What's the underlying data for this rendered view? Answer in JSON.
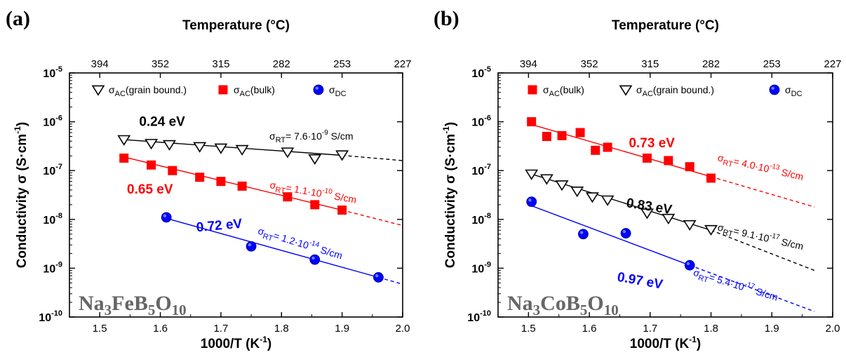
{
  "chart_data": [
    {
      "type": "scatter",
      "panel_label": "(a)",
      "xlabel": "1000/T (K",
      "xlabel_sup": "-1",
      "xlabel_tail": ")",
      "ylabel": "Conductivity σ (S·cm",
      "ylabel_sup": "-1",
      "ylabel_tail": ")",
      "top_axis_label": "Temperature (°C)",
      "top_ticks": [
        {
          "x": 1.5,
          "label": "394"
        },
        {
          "x": 1.6,
          "label": "352"
        },
        {
          "x": 1.7,
          "label": "315"
        },
        {
          "x": 1.8,
          "label": "282"
        },
        {
          "x": 1.9,
          "label": "253"
        },
        {
          "x": 2.0,
          "label": "227"
        }
      ],
      "xlim": [
        1.45,
        2.0
      ],
      "x_ticks": [
        {
          "value": 1.5,
          "label": "1.5"
        },
        {
          "value": 1.6,
          "label": "1.6"
        },
        {
          "value": 1.7,
          "label": "1.7"
        },
        {
          "value": 1.8,
          "label": "1.8"
        },
        {
          "value": 1.9,
          "label": "1.9"
        },
        {
          "value": 2.0,
          "label": "2.0"
        }
      ],
      "y_scale": "log",
      "ylim": [
        1e-10,
        1e-05
      ],
      "y_ticks": [
        {
          "exp": -5,
          "base": "10",
          "sup": "-5"
        },
        {
          "exp": -6,
          "base": "10",
          "sup": "-6"
        },
        {
          "exp": -7,
          "base": "10",
          "sup": "-7"
        },
        {
          "exp": -8,
          "base": "10",
          "sup": "-8"
        },
        {
          "exp": -9,
          "base": "10",
          "sup": "-9"
        },
        {
          "exp": -10,
          "base": "10",
          "sup": "-10"
        }
      ],
      "legend": [
        {
          "marker": "triangle",
          "color": "#000000",
          "main": "σ",
          "sub": "AC",
          "tail": "(grain bound.)"
        },
        {
          "marker": "square",
          "color": "#ff0000",
          "main": "σ",
          "sub": "AC",
          "tail": "(bulk)"
        },
        {
          "marker": "circle",
          "color": "#0000ff",
          "main": "σ",
          "sub": "DC",
          "tail": ""
        }
      ],
      "sample_name": {
        "parts": [
          {
            "text": "Na",
            "sub": false
          },
          {
            "text": "3",
            "sub": true
          },
          {
            "text": "FeB",
            "sub": false
          },
          {
            "text": "5",
            "sub": true
          },
          {
            "text": "O",
            "sub": false
          },
          {
            "text": "10",
            "sub": true
          }
        ]
      },
      "series": [
        {
          "marker": "triangle",
          "color": "#000000",
          "x": [
            1.54,
            1.585,
            1.615,
            1.665,
            1.7,
            1.735,
            1.81,
            1.855,
            1.9
          ],
          "y": [
            4.3e-07,
            3.6e-07,
            3.4e-07,
            3.1e-07,
            2.9e-07,
            2.7e-07,
            2.4e-07,
            1.75e-07,
            2.1e-07
          ],
          "fit": {
            "x0": 1.54,
            "y0": 4.3e-07,
            "x1": 1.9,
            "y1": 2.05e-07
          },
          "extrap": {
            "x1": 2.0,
            "y1": 1.6e-07
          },
          "energy": {
            "text": "0.24 eV",
            "x": 1.565,
            "y": 8.2e-07,
            "rot": 0
          },
          "rt": {
            "prefix": "σ",
            "sub": "RT",
            "eq": "= 7.6·10",
            "sup": "-9",
            "unit": " S/cm",
            "x": 1.78,
            "y": 4.3e-07,
            "rot": 0
          }
        },
        {
          "marker": "square",
          "color": "#ff0000",
          "x": [
            1.54,
            1.585,
            1.62,
            1.665,
            1.7,
            1.735,
            1.81,
            1.855,
            1.9
          ],
          "y": [
            1.8e-07,
            1.3e-07,
            1e-07,
            7.3e-08,
            6e-08,
            4.8e-08,
            2.9e-08,
            2e-08,
            1.55e-08
          ],
          "fit": {
            "x0": 1.54,
            "y0": 1.9e-07,
            "x1": 1.9,
            "y1": 1.55e-08
          },
          "extrap": {
            "x1": 2.0,
            "y1": 7.5e-09
          },
          "energy": {
            "text": "0.65 eV",
            "x": 1.545,
            "y": 3.4e-08,
            "rot": 0
          },
          "rt": {
            "prefix": "σ",
            "sub": "RT",
            "eq": "= 1.1·10",
            "sup": "-10",
            "unit": " S/cm",
            "x": 1.78,
            "y": 4.4e-08,
            "rot": 10
          }
        },
        {
          "marker": "circle",
          "color": "#0000ff",
          "x": [
            1.61,
            1.75,
            1.855,
            1.96
          ],
          "y": [
            1.1e-08,
            2.8e-09,
            1.5e-09,
            6.5e-10
          ],
          "fit": {
            "x0": 1.61,
            "y0": 1.05e-08,
            "x1": 1.96,
            "y1": 6.5e-10
          },
          "extrap": {
            "x1": 2.0,
            "y1": 4.7e-10
          },
          "energy": {
            "text": "0.72 eV",
            "x": 1.66,
            "y": 5.6e-09,
            "rot": -5
          },
          "rt": {
            "prefix": "σ",
            "sub": "RT",
            "eq": "= 1.2·10",
            "sup": "-14",
            "unit": " S/cm",
            "x": 1.76,
            "y": 5.1e-09,
            "rot": 17
          }
        }
      ]
    },
    {
      "type": "scatter",
      "panel_label": "(b)",
      "xlabel": "1000/T (K",
      "xlabel_sup": "-1",
      "xlabel_tail": ")",
      "ylabel": "Conductivity σ (S·cm",
      "ylabel_sup": "-1",
      "ylabel_tail": ")",
      "top_axis_label": "Temperature (°C)",
      "top_ticks": [
        {
          "x": 1.5,
          "label": "394"
        },
        {
          "x": 1.6,
          "label": "352"
        },
        {
          "x": 1.7,
          "label": "315"
        },
        {
          "x": 1.8,
          "label": "282"
        },
        {
          "x": 1.9,
          "label": "253"
        },
        {
          "x": 2.0,
          "label": "227"
        }
      ],
      "xlim": [
        1.45,
        2.0
      ],
      "x_ticks": [
        {
          "value": 1.5,
          "label": "1.5"
        },
        {
          "value": 1.6,
          "label": "1.6"
        },
        {
          "value": 1.7,
          "label": "1.7"
        },
        {
          "value": 1.8,
          "label": "1.8"
        },
        {
          "value": 1.9,
          "label": "1.9"
        },
        {
          "value": 2.0,
          "label": "2.0"
        }
      ],
      "y_scale": "log",
      "ylim": [
        1e-10,
        1e-05
      ],
      "y_ticks": [
        {
          "exp": -5,
          "base": "10",
          "sup": "-5"
        },
        {
          "exp": -6,
          "base": "10",
          "sup": "-6"
        },
        {
          "exp": -7,
          "base": "10",
          "sup": "-7"
        },
        {
          "exp": -8,
          "base": "10",
          "sup": "-8"
        },
        {
          "exp": -9,
          "base": "10",
          "sup": "-9"
        },
        {
          "exp": -10,
          "base": "10",
          "sup": "-10"
        }
      ],
      "legend": [
        {
          "marker": "square",
          "color": "#ff0000",
          "main": "σ",
          "sub": "AC",
          "tail": "(bulk)"
        },
        {
          "marker": "triangle",
          "color": "#000000",
          "main": "σ",
          "sub": "AC",
          "tail": "(grain bound.)"
        },
        {
          "marker": "circle",
          "color": "#0000ff",
          "main": "σ",
          "sub": "DC",
          "tail": ""
        }
      ],
      "sample_name": {
        "parts": [
          {
            "text": "Na",
            "sub": false
          },
          {
            "text": "3",
            "sub": true
          },
          {
            "text": "CoB",
            "sub": false
          },
          {
            "text": "5",
            "sub": true
          },
          {
            "text": "O",
            "sub": false
          },
          {
            "text": "10",
            "sub": true
          }
        ]
      },
      "series": [
        {
          "marker": "square",
          "color": "#ff0000",
          "x": [
            1.505,
            1.53,
            1.555,
            1.585,
            1.61,
            1.63,
            1.695,
            1.73,
            1.765,
            1.8
          ],
          "y": [
            1e-06,
            5e-07,
            5.2e-07,
            6e-07,
            2.6e-07,
            3e-07,
            1.8e-07,
            1.6e-07,
            1.2e-07,
            7e-08
          ],
          "fit": {
            "x0": 1.505,
            "y0": 8.8e-07,
            "x1": 1.8,
            "y1": 7.5e-08
          },
          "extrap": {
            "x1": 1.97,
            "y1": 1.8e-08
          },
          "energy": {
            "text": "0.73 eV",
            "x": 1.665,
            "y": 3e-07,
            "rot": 0
          },
          "rt": {
            "prefix": "σ",
            "sub": "RT",
            "eq": "= 4.0·10",
            "sup": "-13",
            "unit": " S/cm",
            "x": 1.81,
            "y": 1.6e-07,
            "rot": 13
          }
        },
        {
          "marker": "triangle",
          "color": "#000000",
          "x": [
            1.505,
            1.53,
            1.555,
            1.58,
            1.605,
            1.63,
            1.695,
            1.73,
            1.765,
            1.8
          ],
          "y": [
            8.5e-08,
            6.8e-08,
            5.1e-08,
            3.8e-08,
            2.9e-08,
            2.5e-08,
            1.35e-08,
            1.05e-08,
            7.8e-09,
            6.2e-09
          ],
          "fit": {
            "x0": 1.505,
            "y0": 8.5e-08,
            "x1": 1.8,
            "y1": 6e-09
          },
          "extrap": {
            "x1": 1.97,
            "y1": 9e-10
          },
          "energy": {
            "text": "0.83 eV",
            "x": 1.66,
            "y": 1.8e-08,
            "rot": 9
          },
          "rt": {
            "prefix": "σ",
            "sub": "RT",
            "eq": "= 9.1·10",
            "sup": "-17",
            "unit": " S/cm",
            "x": 1.81,
            "y": 6e-09,
            "rot": 13
          }
        },
        {
          "marker": "circle",
          "color": "#0000ff",
          "x": [
            1.505,
            1.59,
            1.66,
            1.765
          ],
          "y": [
            2.3e-08,
            5e-09,
            5.2e-09,
            1.15e-09
          ],
          "fit": {
            "x0": 1.505,
            "y0": 1.9e-08,
            "x1": 1.765,
            "y1": 1.15e-09
          },
          "extrap": {
            "x1": 1.97,
            "y1": 1.3e-10
          },
          "energy": {
            "text": "0.97 eV",
            "x": 1.645,
            "y": 5.5e-10,
            "rot": 10
          },
          "rt": {
            "prefix": "σ",
            "sub": "RT",
            "eq": "= 5.4·10",
            "sup": "-17",
            "unit": " S/cm",
            "x": 1.77,
            "y": 7.2e-10,
            "rot": 17
          }
        }
      ]
    }
  ]
}
